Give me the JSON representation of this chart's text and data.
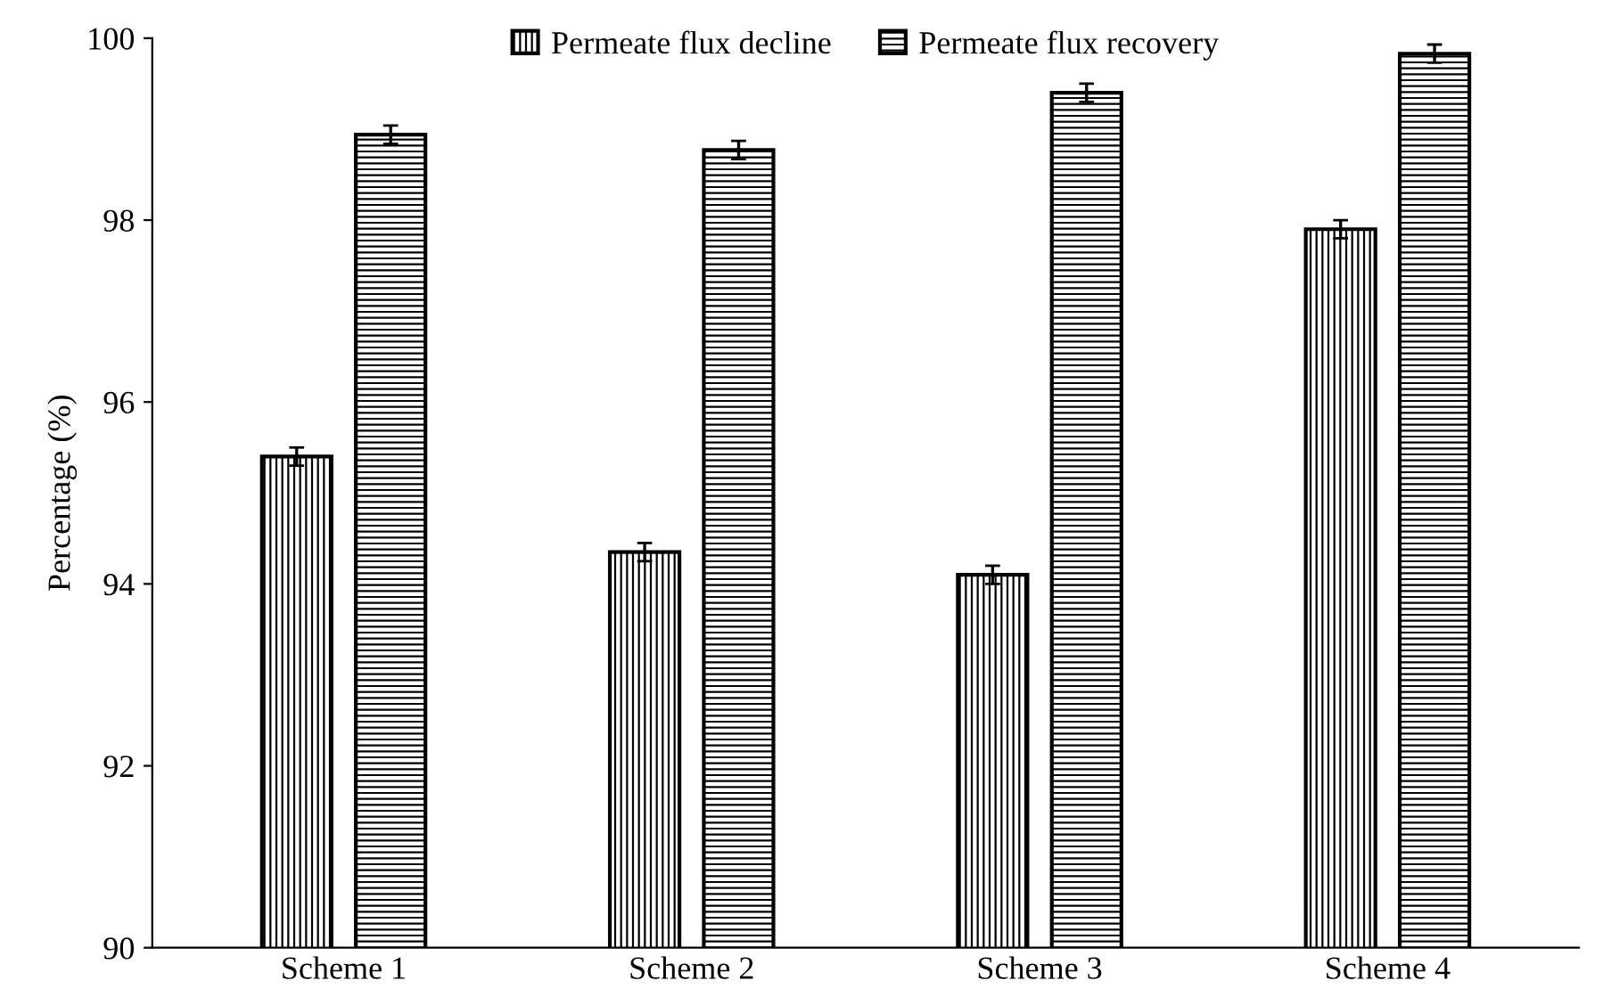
{
  "chart_data": {
    "type": "bar",
    "ylabel": "Percentage (%)",
    "categories": [
      "Scheme 1",
      "Scheme 2",
      "Scheme 3",
      "Scheme 4"
    ],
    "series": [
      {
        "name": "Permeate flux decline",
        "color": "#000000",
        "values": [
          95.4,
          94.35,
          94.1,
          97.9
        ],
        "errors": [
          0.1,
          0.1,
          0.1,
          0.1
        ]
      },
      {
        "name": "Permeate flux recovery",
        "color": "#000000",
        "values": [
          98.94,
          98.77,
          99.4,
          99.83
        ],
        "errors": [
          0.1,
          0.1,
          0.1,
          0.1
        ]
      }
    ],
    "ylim": [
      90,
      100
    ],
    "yticks": [
      90,
      92,
      94,
      96,
      98,
      100
    ],
    "grid": false,
    "legend": "top"
  }
}
